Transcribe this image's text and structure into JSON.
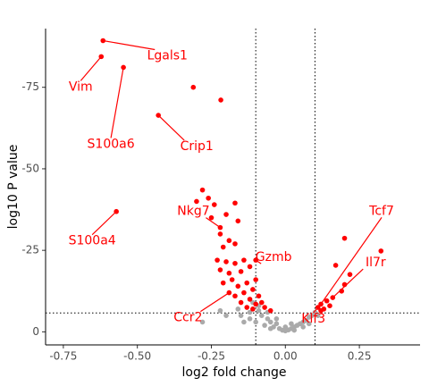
{
  "chart_data": {
    "type": "scatter",
    "xlabel": "log2 fold change",
    "ylabel": "log10 P value",
    "xlim": [
      -0.81,
      0.455
    ],
    "ylim": [
      -4,
      93
    ],
    "xticks": [
      -0.75,
      {
        "value": -0.5,
        "label": "-0.50"
      },
      -0.25,
      {
        "value": 0,
        "label": "0.00"
      },
      0.25
    ],
    "yticks": [
      0,
      {
        "value": 25,
        "label": "-25"
      },
      {
        "value": 50,
        "label": "-50"
      },
      {
        "value": 75,
        "label": "-75"
      }
    ],
    "vlines": [
      -0.1,
      0.1
    ],
    "hline": 5.8,
    "grid": false,
    "series": [
      {
        "color": "#ff0000",
        "x": [
          -0.616,
          -0.622,
          -0.547,
          -0.429,
          -0.571,
          -0.22,
          -0.1,
          -0.19,
          0.11,
          0.12,
          0.16,
          -0.311,
          -0.218,
          -0.28,
          -0.26,
          -0.3,
          -0.24,
          -0.17,
          -0.2,
          -0.25,
          -0.22,
          -0.19,
          -0.16,
          -0.17,
          -0.21,
          -0.23,
          -0.2,
          -0.17,
          -0.14,
          -0.22,
          -0.19,
          -0.15,
          -0.12,
          -0.18,
          -0.21,
          -0.16,
          -0.13,
          -0.1,
          -0.14,
          -0.11,
          -0.17,
          -0.12,
          -0.09,
          -0.15,
          -0.1,
          -0.13,
          -0.08,
          -0.11,
          -0.07,
          -0.05,
          0.2,
          0.323,
          0.17,
          0.218,
          0.2,
          0.19,
          0.14,
          0.15,
          0.12,
          0.13
        ],
        "values": [
          89.3,
          84.4,
          81.1,
          66.4,
          36.9,
          32,
          22,
          12,
          7.5,
          8.5,
          10.5,
          75,
          71.1,
          43.5,
          41,
          40,
          39,
          39.5,
          36,
          35,
          30,
          28,
          34,
          27,
          26,
          22,
          21.5,
          21,
          22,
          19,
          18,
          18.5,
          20,
          16,
          15,
          14,
          15,
          16,
          12,
          13,
          11,
          10,
          11,
          9,
          8.5,
          7.5,
          9,
          7,
          7.5,
          6.5,
          28.7,
          24.8,
          20.4,
          17.6,
          14.5,
          12.5,
          9.5,
          8,
          6.5,
          7
        ],
        "labels": [
          "Lgals1",
          "Vim",
          "S100a6",
          "Crip1",
          "S100a4",
          "Nkg7",
          "Gzmb",
          "Ccr2",
          "Klf3",
          "Tcf7",
          "Il7r",
          null,
          null,
          null,
          null,
          null,
          null,
          null,
          null,
          null,
          null,
          null,
          null,
          null,
          null,
          null,
          null,
          null,
          null,
          null,
          null,
          null,
          null,
          null,
          null,
          null,
          null,
          null,
          null,
          null,
          null,
          null,
          null,
          null,
          null,
          null,
          null,
          null,
          null,
          null,
          null,
          null,
          null,
          null,
          null,
          null,
          null,
          null,
          null,
          null
        ]
      },
      {
        "color": "#aaaaaa",
        "x": [
          -0.28,
          -0.2,
          -0.15,
          -0.12,
          -0.1,
          -0.08,
          -0.07,
          -0.06,
          -0.05,
          -0.04,
          -0.03,
          -0.02,
          -0.01,
          0,
          0.01,
          0.02,
          0.03,
          0.04,
          0.05,
          0.06,
          0.07,
          0.08,
          0.09,
          -0.09,
          -0.12,
          0.1,
          0.11,
          -0.14,
          -0.22,
          -0.06,
          -0.03,
          0.0,
          0.03,
          0.06,
          -0.09,
          -0.11,
          -0.05,
          0.02,
          0.08,
          -0.16
        ],
        "values": [
          3,
          5,
          5,
          4,
          3,
          5,
          2,
          4,
          3,
          1.5,
          2.5,
          1,
          0.5,
          0.3,
          0.6,
          1,
          1.5,
          2,
          2.5,
          3,
          3.5,
          4.5,
          5,
          6.5,
          6,
          6,
          5,
          3,
          6.5,
          6,
          4,
          1.5,
          0.5,
          1.5,
          8,
          9,
          1,
          2.5,
          2.5,
          7
        ]
      }
    ]
  }
}
